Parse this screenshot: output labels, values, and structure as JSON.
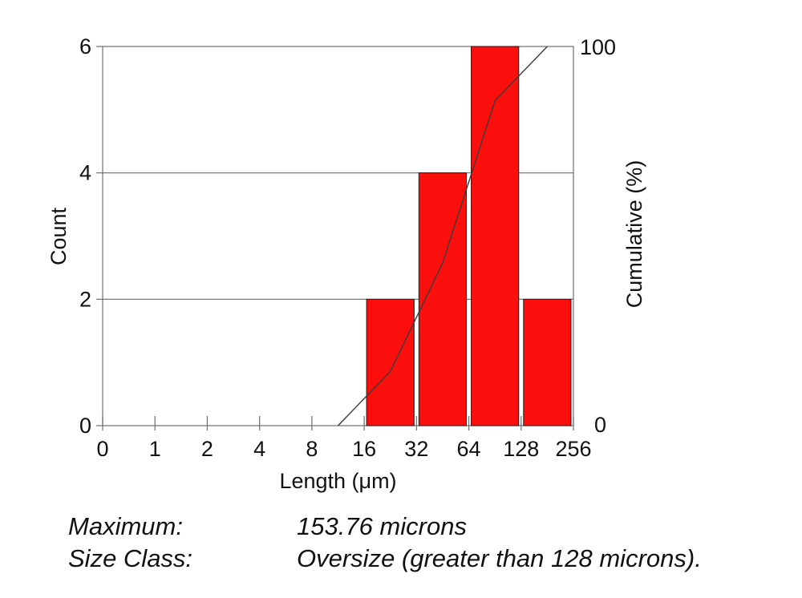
{
  "chart_data": {
    "type": "bar",
    "subtype": "histogram-with-cumulative-line",
    "title": "",
    "xlabel": "Length (μm)",
    "ylabel_left": "Count",
    "ylabel_right": "Cumulative (%)",
    "x_scale": "log2-categorical",
    "x_tick_labels": [
      "0",
      "1",
      "2",
      "4",
      "8",
      "16",
      "32",
      "64",
      "128",
      "256"
    ],
    "y_left_ticks": [
      0,
      2,
      4,
      6
    ],
    "y_left_range": [
      0,
      6
    ],
    "y_right_ticks": [
      0,
      100
    ],
    "y_right_range": [
      0,
      100
    ],
    "grid": "horizontal",
    "total_count": 14,
    "bars": [
      {
        "bin": "16-32",
        "from": 16,
        "to": 32,
        "count": 2
      },
      {
        "bin": "32-64",
        "from": 32,
        "to": 64,
        "count": 4
      },
      {
        "bin": "64-128",
        "from": 64,
        "to": 128,
        "count": 6
      },
      {
        "bin": "128-256",
        "from": 128,
        "to": 256,
        "count": 2
      }
    ],
    "cumulative_line": {
      "points": [
        {
          "bin_from": 8,
          "bin_to": 16,
          "pct": 0
        },
        {
          "bin_from": 16,
          "bin_to": 32,
          "pct": 14.3
        },
        {
          "bin_from": 32,
          "bin_to": 64,
          "pct": 42.9
        },
        {
          "bin_from": 64,
          "bin_to": 128,
          "pct": 85.7
        },
        {
          "bin_from": 128,
          "bin_to": 256,
          "pct": 100
        }
      ]
    },
    "colors": {
      "bar": "#fa0f0c",
      "bar_border": "#2a1a1a",
      "axis": "#6e6e6e",
      "line": "#3c3c3c",
      "text": "#111111",
      "background": "#ffffff"
    }
  },
  "stats": {
    "rows": [
      {
        "label": "Maximum:",
        "value": "153.76 microns"
      },
      {
        "label": "Size Class:",
        "value": "Oversize (greater than 128 microns)."
      }
    ]
  }
}
